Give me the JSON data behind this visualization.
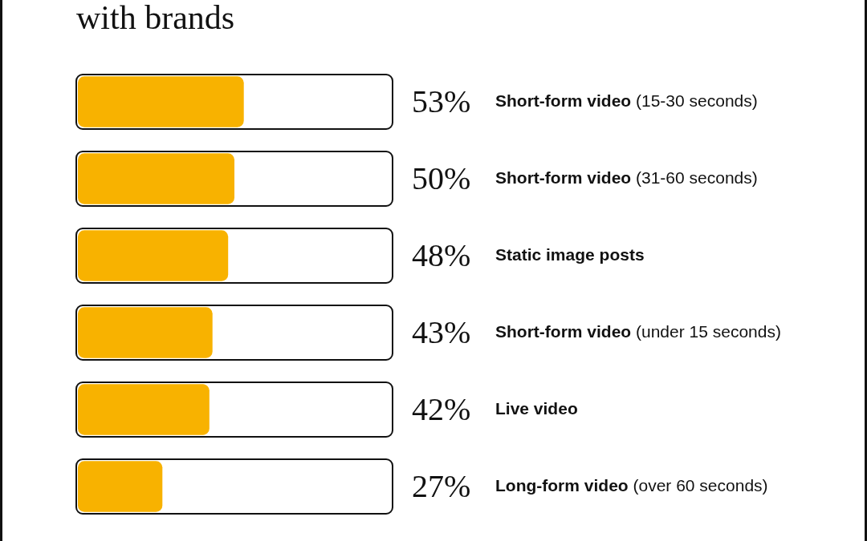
{
  "chart_data": {
    "type": "bar",
    "orientation": "horizontal",
    "title": "with brands",
    "categories": [
      "Short-form video (15-30 seconds)",
      "Short-form video (31-60 seconds)",
      "Static image posts",
      "Short-form video (under 15 seconds)",
      "Live video",
      "Long-form video (over 60 seconds)"
    ],
    "values": [
      53,
      50,
      48,
      43,
      42,
      27
    ],
    "value_labels": [
      "53%",
      "50%",
      "48%",
      "43%",
      "42%",
      "27%"
    ],
    "color": "#f8b200",
    "xlim": [
      0,
      100
    ],
    "tick_labels": false
  }
}
